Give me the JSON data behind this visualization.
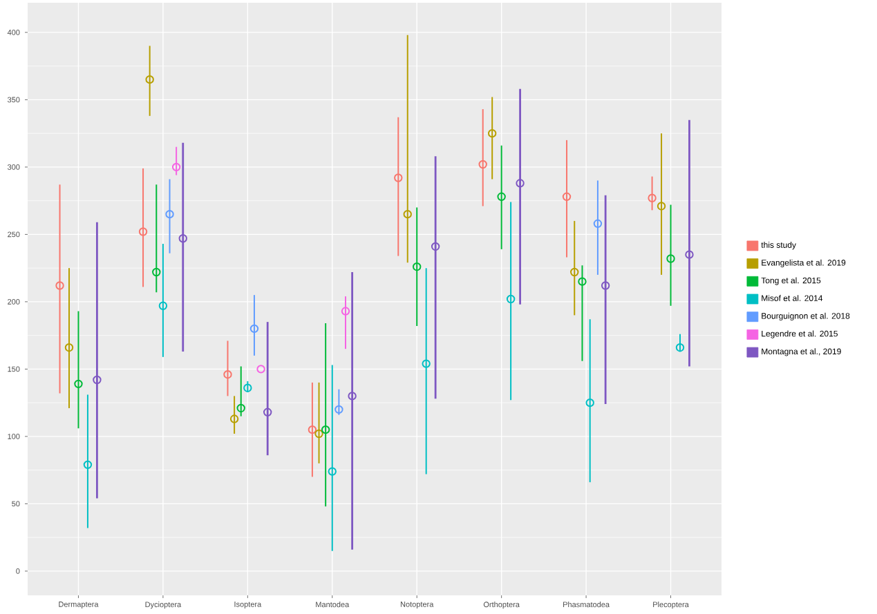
{
  "chart_data": {
    "type": "scatter",
    "categories": [
      "Dermaptera",
      "Dycioptera",
      "Isoptera",
      "Mantodea",
      "Notoptera",
      "Orthoptera",
      "Phasmatodea",
      "Plecoptera"
    ],
    "series": [
      {
        "name": "this study",
        "color": "#F8766D",
        "values": [
          212,
          252,
          146,
          105,
          292,
          302,
          278,
          277
        ],
        "errors": [
          [
            132,
            287
          ],
          [
            211,
            299
          ],
          [
            130,
            171
          ],
          [
            70,
            140
          ],
          [
            234,
            337
          ],
          [
            271,
            343
          ],
          [
            233,
            320
          ],
          [
            268,
            293
          ]
        ]
      },
      {
        "name": "Evangelista et al. 2019",
        "color": "#B79F00",
        "values": [
          166,
          365,
          113,
          102,
          265,
          325,
          222,
          271
        ],
        "errors": [
          [
            121,
            225
          ],
          [
            338,
            390
          ],
          [
            102,
            130
          ],
          [
            80,
            140
          ],
          [
            229,
            398
          ],
          [
            291,
            352
          ],
          [
            190,
            260
          ],
          [
            220,
            325
          ]
        ]
      },
      {
        "name": "Tong et al. 2015",
        "color": "#00BA38",
        "values": [
          139,
          222,
          121,
          105,
          226,
          278,
          215,
          232
        ],
        "errors": [
          [
            106,
            193
          ],
          [
            207,
            287
          ],
          [
            115,
            152
          ],
          [
            48,
            184
          ],
          [
            182,
            270
          ],
          [
            239,
            316
          ],
          [
            156,
            227
          ],
          [
            197,
            272
          ]
        ]
      },
      {
        "name": "Misof et al. 2014",
        "color": "#00BFC4",
        "values": [
          79,
          197,
          136,
          74,
          154,
          202,
          125,
          166
        ],
        "errors": [
          [
            32,
            131
          ],
          [
            159,
            243
          ],
          [
            133,
            141
          ],
          [
            15,
            153
          ],
          [
            72,
            225
          ],
          [
            127,
            274
          ],
          [
            66,
            187
          ],
          [
            163,
            176
          ]
        ]
      },
      {
        "name": "Bourguignon et al. 2018",
        "color": "#619CFF",
        "values": [
          null,
          265,
          180,
          120,
          null,
          null,
          258,
          null
        ],
        "errors": [
          null,
          [
            236,
            291
          ],
          [
            160,
            205
          ],
          [
            116,
            135
          ],
          null,
          null,
          [
            220,
            290
          ],
          null
        ]
      },
      {
        "name": "Legendre et al. 2015",
        "color": "#F564E3",
        "values": [
          null,
          300,
          150,
          193,
          null,
          null,
          null,
          null
        ],
        "errors": [
          null,
          [
            294,
            315
          ],
          null,
          [
            165,
            204
          ],
          null,
          null,
          null,
          null
        ]
      },
      {
        "name": "Montagna et al., 2019",
        "color": "#7E57C2",
        "values": [
          142,
          247,
          118,
          130,
          241,
          288,
          212,
          235
        ],
        "errors": [
          [
            54,
            259
          ],
          [
            163,
            318
          ],
          [
            86,
            185
          ],
          [
            16,
            222
          ],
          [
            128,
            308
          ],
          [
            198,
            358
          ],
          [
            124,
            279
          ],
          [
            152,
            335
          ]
        ]
      }
    ],
    "ylim": [
      -18,
      422
    ],
    "yticks": [
      0,
      50,
      100,
      150,
      200,
      250,
      300,
      350,
      400
    ],
    "grid": true,
    "legend": "right",
    "marker": "circle"
  }
}
